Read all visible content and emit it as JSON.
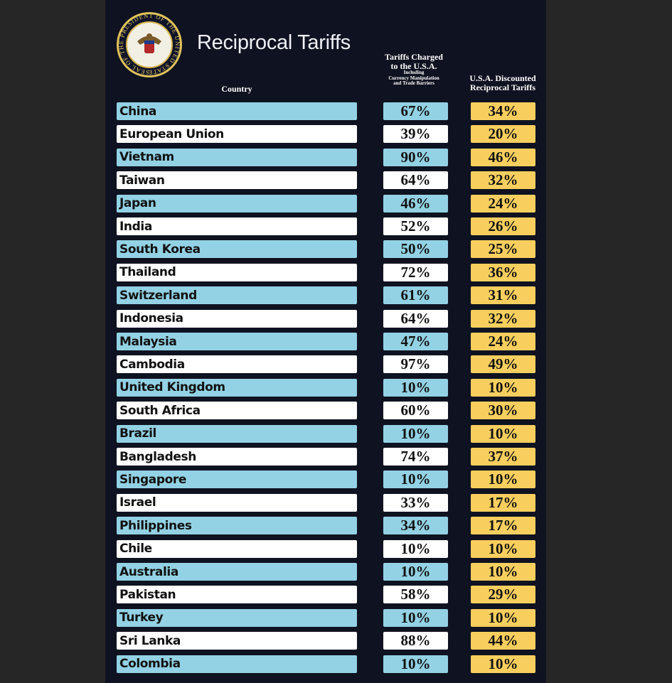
{
  "header": {
    "title": "Reciprocal Tariffs",
    "seal": "SEAL OF THE PRESIDENT OF THE UNITED STATES",
    "columns": [
      [
        "Country"
      ],
      [
        "Tariffs Charged",
        "to the U.S.A.",
        "Including",
        "Currency Manipulation",
        "and Trade Barriers"
      ],
      [
        "U.S.A. Discounted",
        "Reciprocal Tariffs"
      ]
    ]
  },
  "table": {
    "rows": [
      [
        "China",
        "67%",
        "34%"
      ],
      [
        "European Union",
        "39%",
        "20%"
      ],
      [
        "Vietnam",
        "90%",
        "46%"
      ],
      [
        "Taiwan",
        "64%",
        "32%"
      ],
      [
        "Japan",
        "46%",
        "24%"
      ],
      [
        "India",
        "52%",
        "26%"
      ],
      [
        "South Korea",
        "50%",
        "25%"
      ],
      [
        "Thailand",
        "72%",
        "36%"
      ],
      [
        "Switzerland",
        "61%",
        "31%"
      ],
      [
        "Indonesia",
        "64%",
        "32%"
      ],
      [
        "Malaysia",
        "47%",
        "24%"
      ],
      [
        "Cambodia",
        "97%",
        "49%"
      ],
      [
        "United Kingdom",
        "10%",
        "10%"
      ],
      [
        "South Africa",
        "60%",
        "30%"
      ],
      [
        "Brazil",
        "10%",
        "10%"
      ],
      [
        "Bangladesh",
        "74%",
        "37%"
      ],
      [
        "Singapore",
        "10%",
        "10%"
      ],
      [
        "Israel",
        "33%",
        "17%"
      ],
      [
        "Philippines",
        "34%",
        "17%"
      ],
      [
        "Chile",
        "10%",
        "10%"
      ],
      [
        "Australia",
        "10%",
        "10%"
      ],
      [
        "Pakistan",
        "58%",
        "29%"
      ],
      [
        "Turkey",
        "10%",
        "10%"
      ],
      [
        "Sri Lanka",
        "88%",
        "44%"
      ],
      [
        "Colombia",
        "10%",
        "10%"
      ]
    ]
  }
}
